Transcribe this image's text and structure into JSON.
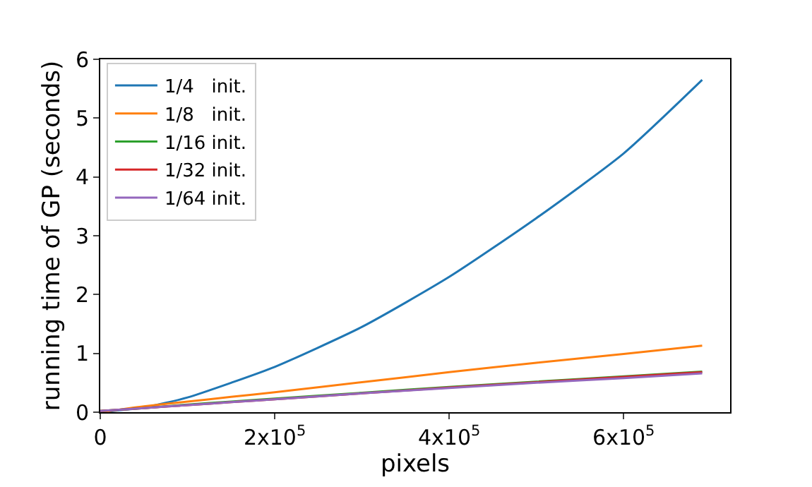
{
  "chart_data": {
    "type": "line",
    "xlabel": "pixels",
    "ylabel": "running time of GP (seconds)",
    "x": [
      0,
      50000,
      100000,
      150000,
      200000,
      300000,
      400000,
      500000,
      600000,
      690000
    ],
    "series": [
      {
        "name": "1/4   init.",
        "color": "#1f77b4",
        "values": [
          0,
          0.08,
          0.25,
          0.5,
          0.77,
          1.45,
          2.3,
          3.3,
          4.4,
          5.65
        ]
      },
      {
        "name": "1/8   init.",
        "color": "#ff7f0e",
        "values": [
          0,
          0.1,
          0.18,
          0.26,
          0.34,
          0.51,
          0.68,
          0.84,
          0.99,
          1.13
        ]
      },
      {
        "name": "1/16 init.",
        "color": "#2ca02c",
        "values": [
          0.02,
          0.07,
          0.13,
          0.18,
          0.23,
          0.33,
          0.43,
          0.52,
          0.61,
          0.69
        ]
      },
      {
        "name": "1/32 init.",
        "color": "#d62728",
        "values": [
          0.02,
          0.07,
          0.12,
          0.17,
          0.22,
          0.32,
          0.42,
          0.51,
          0.6,
          0.68
        ]
      },
      {
        "name": "1/64 init.",
        "color": "#9467bd",
        "values": [
          0.02,
          0.07,
          0.12,
          0.17,
          0.22,
          0.32,
          0.41,
          0.5,
          0.58,
          0.66
        ]
      }
    ],
    "xlim": [
      0,
      722000
    ],
    "xticks": [
      0,
      {
        "value": 200000,
        "label": "2x10$^{5}$"
      },
      {
        "value": 400000,
        "label": "4x10$^{5}$"
      },
      {
        "value": 600000,
        "label": "6x10$^{5}$"
      }
    ],
    "ylim": [
      0,
      6
    ],
    "yticks": [
      0,
      1,
      2,
      3,
      4,
      5,
      6
    ],
    "legend": "top left",
    "marker": "none",
    "line_style": "solid"
  }
}
